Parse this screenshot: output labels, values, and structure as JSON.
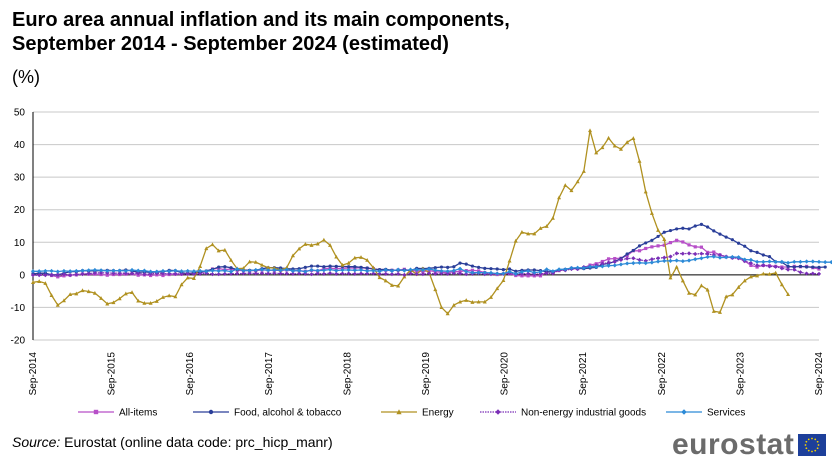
{
  "header": {
    "title_line1": "Euro area annual inflation and its main components,",
    "title_line2": "September 2014 - September 2024 (estimated)",
    "unit": "(%)"
  },
  "footer": {
    "source_label": "Source:",
    "source_text": " Eurostat (online data code: prc_hicp_manr)",
    "logo_text": "eurostat"
  },
  "chart_data": {
    "type": "line",
    "ylim": [
      -20,
      50
    ],
    "yticks": [
      "50",
      "40",
      "30",
      "20",
      "10",
      "0",
      "-10",
      "-20"
    ],
    "xticks": [
      "Sep-2014",
      "Sep-2015",
      "Sep-2016",
      "Sep-2017",
      "Sep-2018",
      "Sep-2019",
      "Sep-2020",
      "Sep-2021",
      "Sep-2022",
      "Sep-2023",
      "Sep-2024"
    ],
    "grid": true,
    "legend_position": "bottom",
    "series": [
      {
        "name": "All-items",
        "color": "#b74fc8",
        "marker": "square",
        "values": [
          0.3,
          0.4,
          0.3,
          -0.2,
          -0.6,
          -0.3,
          -0.1,
          0.0,
          0.3,
          0.2,
          0.2,
          0.1,
          -0.1,
          0.1,
          0.1,
          0.2,
          0.3,
          -0.1,
          0.0,
          -0.2,
          0.0,
          -0.2,
          0.1,
          0.2,
          0.2,
          0.4,
          0.5,
          0.6,
          1.1,
          1.8,
          2.0,
          1.5,
          1.9,
          1.4,
          1.3,
          1.3,
          1.3,
          1.5,
          1.5,
          1.4,
          1.4,
          1.5,
          1.3,
          1.3,
          1.1,
          1.4,
          1.2,
          1.9,
          2.0,
          1.9,
          2.0,
          2.1,
          2.1,
          2.2,
          2.0,
          1.9,
          1.5,
          1.4,
          1.4,
          1.5,
          1.7,
          1.3,
          1.2,
          1.0,
          1.3,
          1.0,
          0.8,
          0.7,
          1.0,
          1.0,
          1.3,
          1.4,
          1.2,
          0.7,
          0.3,
          0.1,
          0.3,
          0.4,
          -0.2,
          -0.3,
          -0.3,
          -0.3,
          -0.3,
          0.9,
          0.9,
          1.3,
          1.6,
          2.0,
          1.9,
          2.2,
          3.0,
          3.4,
          4.1,
          4.9,
          5.0,
          5.1,
          5.9,
          7.4,
          7.4,
          8.1,
          8.6,
          8.9,
          9.1,
          9.9,
          10.6,
          10.1,
          9.2,
          8.6,
          8.5,
          6.9,
          7.0,
          6.1,
          5.5,
          5.3,
          5.2,
          4.3,
          2.9,
          2.4,
          2.9,
          2.8,
          2.6,
          2.4,
          2.4,
          2.6,
          2.5,
          2.6,
          2.2,
          1.8
        ]
      },
      {
        "name": "Food, alcohol & tobacco",
        "color": "#2a3e99",
        "marker": "circle",
        "values": [
          0.3,
          0.5,
          0.5,
          0.0,
          0.0,
          0.5,
          1.0,
          1.0,
          1.3,
          1.2,
          1.2,
          1.3,
          1.4,
          1.3,
          1.3,
          1.5,
          1.2,
          0.8,
          0.9,
          0.8,
          0.9,
          0.9,
          1.4,
          1.3,
          0.7,
          0.4,
          0.7,
          0.8,
          1.2,
          1.7,
          2.4,
          2.5,
          2.2,
          1.6,
          1.5,
          1.4,
          1.4,
          1.9,
          2.2,
          2.2,
          2.1,
          1.9,
          1.8,
          1.9,
          2.3,
          2.7,
          2.7,
          2.5,
          2.7,
          2.6,
          2.6,
          2.5,
          2.5,
          2.3,
          2.1,
          1.8,
          1.6,
          1.7,
          1.4,
          1.4,
          1.5,
          1.3,
          2.0,
          1.9,
          2.0,
          2.2,
          2.4,
          2.3,
          2.5,
          3.6,
          3.3,
          2.7,
          2.3,
          2.0,
          1.9,
          1.8,
          1.6,
          1.8,
          1.1,
          1.4,
          1.5,
          1.5,
          1.3,
          0.9,
          1.0,
          1.5,
          1.7,
          2.0,
          2.0,
          1.9,
          2.1,
          2.3,
          3.2,
          3.5,
          4.1,
          5.0,
          6.4,
          7.5,
          8.9,
          9.8,
          10.6,
          11.8,
          13.1,
          13.6,
          14.1,
          14.3,
          14.1,
          15.0,
          15.5,
          14.7,
          13.5,
          12.5,
          11.6,
          10.8,
          9.7,
          8.8,
          7.4,
          6.9,
          6.1,
          5.6,
          4.0,
          3.9,
          2.6,
          2.4,
          2.6,
          2.4,
          2.4,
          2.3,
          2.4
        ]
      },
      {
        "name": "Energy",
        "color": "#b09120",
        "marker": "triangle",
        "values": [
          -2.3,
          -2.0,
          -2.6,
          -6.3,
          -9.3,
          -7.9,
          -6.0,
          -5.8,
          -4.8,
          -5.1,
          -5.6,
          -7.2,
          -8.9,
          -8.5,
          -7.3,
          -5.8,
          -5.4,
          -8.0,
          -8.7,
          -8.7,
          -8.1,
          -6.9,
          -6.4,
          -6.7,
          -3.0,
          -0.9,
          -1.1,
          2.6,
          8.1,
          9.3,
          7.4,
          7.6,
          4.5,
          1.9,
          2.0,
          4.0,
          3.9,
          3.0,
          2.2,
          2.1,
          1.5,
          2.2,
          5.9,
          8.0,
          9.4,
          9.1,
          9.5,
          10.7,
          9.1,
          5.5,
          3.0,
          3.6,
          5.2,
          5.4,
          4.5,
          2.2,
          -0.8,
          -1.8,
          -3.2,
          -3.4,
          -0.6,
          1.5,
          0.2,
          1.9,
          0.7,
          -4.5,
          -10.0,
          -11.9,
          -9.3,
          -8.3,
          -7.8,
          -8.4,
          -8.3,
          -8.3,
          -6.9,
          -4.2,
          -1.7,
          4.3,
          10.4,
          13.1,
          12.6,
          12.6,
          14.3,
          14.9,
          17.4,
          23.7,
          27.5,
          25.9,
          28.6,
          31.8,
          44.3,
          37.5,
          39.1,
          42.0,
          39.6,
          38.6,
          40.7,
          41.9,
          34.9,
          25.5,
          18.9,
          13.7,
          10.9,
          -0.9,
          2.4,
          -1.8,
          -5.6,
          -6.1,
          -3.3,
          -4.6,
          -11.2,
          -11.5,
          -6.7,
          -6.1,
          -3.8,
          -1.8,
          -0.6,
          -0.3,
          0.3,
          0.2,
          0.6,
          -3.0,
          -6.0
        ]
      },
      {
        "name": "Non-energy industrial goods",
        "color": "#7b2fb6",
        "marker": "diamond",
        "values": [
          -0.1,
          -0.1,
          -0.1,
          0.0,
          0.1,
          0.2,
          -0.1,
          0.1,
          0.2,
          0.4,
          0.6,
          0.6,
          0.6,
          0.5,
          0.5,
          0.5,
          0.4,
          0.5,
          0.2,
          0.3,
          0.5,
          0.4,
          0.4,
          0.3,
          0.3,
          0.3,
          0.3,
          0.3,
          0.5,
          0.2,
          0.2,
          0.3,
          0.3,
          0.4,
          0.4,
          0.5,
          0.4,
          0.5,
          0.4,
          0.5,
          0.4,
          0.4,
          0.3,
          0.4,
          0.3,
          0.2,
          0.4,
          0.3,
          0.5,
          0.3,
          0.4,
          0.4,
          0.3,
          0.4,
          0.4,
          0.4,
          0.3,
          0.3,
          0.2,
          0.3,
          0.0,
          0.4,
          0.2,
          0.2,
          0.5,
          0.3,
          0.4,
          0.3,
          0.5,
          0.4,
          0.2,
          0.3,
          0.5,
          0.2,
          0.2,
          0.4,
          0.3,
          0.4,
          0.2,
          0.3,
          0.4,
          0.2,
          0.3,
          0.5,
          0.4,
          1.5,
          1.4,
          1.8,
          1.8,
          2.4,
          2.6,
          2.9,
          3.4,
          3.8,
          4.0,
          4.6,
          5.0,
          5.1,
          4.6,
          4.3,
          4.8,
          5.1,
          5.3,
          5.6,
          6.6,
          6.5,
          6.6,
          6.4,
          6.5,
          6.4,
          6.1,
          6.1,
          5.6,
          5.2,
          5.1,
          4.2,
          3.6,
          2.9,
          2.9,
          2.6,
          2.5,
          2.0,
          1.6,
          1.6,
          0.8,
          0.4,
          0.4,
          0.3
        ]
      },
      {
        "name": "Services",
        "color": "#2c8ad7",
        "marker": "diamond",
        "values": [
          1.1,
          1.1,
          1.2,
          1.2,
          1.0,
          1.2,
          1.1,
          1.2,
          1.3,
          1.4,
          1.5,
          1.4,
          1.2,
          1.3,
          1.3,
          1.2,
          1.5,
          1.3,
          1.3,
          1.0,
          1.0,
          1.2,
          1.1,
          1.3,
          1.1,
          1.2,
          1.1,
          1.2,
          1.1,
          1.3,
          1.2,
          1.3,
          1.0,
          1.8,
          1.3,
          1.3,
          1.5,
          1.6,
          1.4,
          1.5,
          1.4,
          1.6,
          1.2,
          1.3,
          1.0,
          1.5,
          1.3,
          1.4,
          1.6,
          1.3,
          1.5,
          1.5,
          1.4,
          1.5,
          1.2,
          1.3,
          1.1,
          1.5,
          1.2,
          1.6,
          1.3,
          1.6,
          1.6,
          1.5,
          1.8,
          1.4,
          1.2,
          1.1,
          1.3,
          1.9,
          1.0,
          0.7,
          0.7,
          0.7,
          0.6,
          0.4,
          0.4,
          1.0,
          0.3,
          0.9,
          1.2,
          0.7,
          0.9,
          1.7,
          1.1,
          1.7,
          1.7,
          2.1,
          2.2,
          2.1,
          2.5,
          2.5,
          2.6,
          2.8,
          2.9,
          3.2,
          3.5,
          3.6,
          3.7,
          3.6,
          3.8,
          4.1,
          4.3,
          4.3,
          4.4,
          4.2,
          4.4,
          4.8,
          5.1,
          5.5,
          5.6,
          5.3,
          5.4,
          5.5,
          5.4,
          4.7,
          4.6,
          4.0,
          4.0,
          4.1,
          4.0,
          4.0,
          3.7,
          4.0,
          4.0,
          4.1,
          4.1,
          4.0,
          3.9,
          3.9,
          4.2,
          4.0,
          3.9
        ]
      }
    ]
  }
}
